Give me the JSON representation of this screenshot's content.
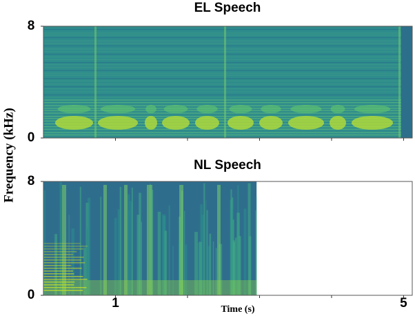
{
  "chart_data": [
    {
      "type": "spectrogram",
      "title": "EL Speech",
      "ylabel": "Frequency (kHz)",
      "ylim": [
        0,
        8
      ],
      "yticks": [
        0,
        8
      ],
      "xlim": [
        0,
        5.12
      ],
      "minor_xticks": [
        1,
        2,
        3,
        4,
        5
      ],
      "time_range": [
        0,
        5.12
      ]
    },
    {
      "type": "spectrogram",
      "title": "NL Speech",
      "xlabel": "Time (s)",
      "ylim": [
        0,
        8
      ],
      "yticks": [
        0,
        8
      ],
      "xlim": [
        0,
        5.12
      ],
      "xticks": [
        1,
        5
      ],
      "minor_xticks": [
        2,
        3,
        4
      ],
      "time_range": [
        0,
        2.96
      ]
    }
  ]
}
